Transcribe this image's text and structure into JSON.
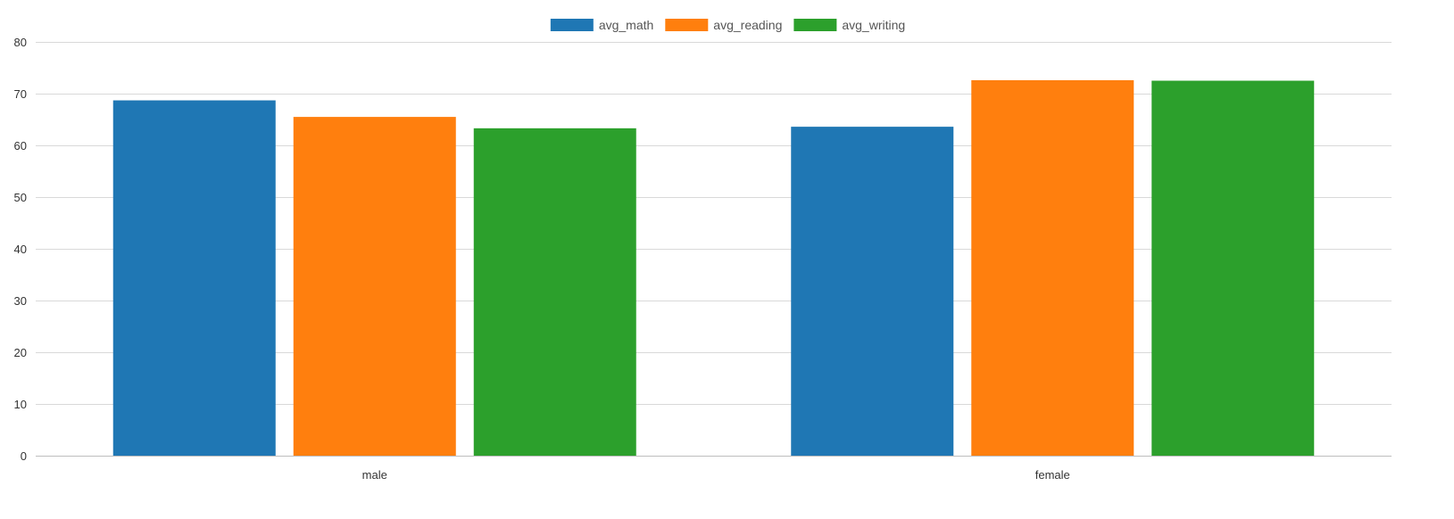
{
  "chart_data": {
    "type": "bar",
    "categories": [
      "male",
      "female"
    ],
    "series": [
      {
        "name": "avg_math",
        "color": "#1f77b4",
        "values": [
          68.7,
          63.6
        ]
      },
      {
        "name": "avg_reading",
        "color": "#ff7f0e",
        "values": [
          65.5,
          72.6
        ]
      },
      {
        "name": "avg_writing",
        "color": "#2ca02c",
        "values": [
          63.3,
          72.5
        ]
      }
    ],
    "ylim": [
      0,
      80
    ],
    "yticks": [
      0,
      10,
      20,
      30,
      40,
      50,
      60,
      70,
      80
    ],
    "grid": true,
    "legend_position": "top-center",
    "title": "",
    "xlabel": "",
    "ylabel": ""
  }
}
